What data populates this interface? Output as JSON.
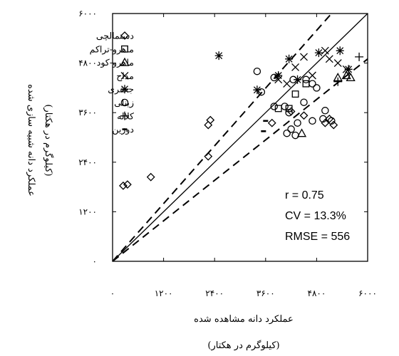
{
  "chart_data": {
    "type": "scatter",
    "xlabel": "عملکرد دانه مشاهده شده",
    "xlabel_unit": "(کیلوگرم در هکتار)",
    "ylabel": "عملکرد دانه شبیه سازی شده",
    "ylabel_unit": "(کیلوگرم در هکتار)",
    "xlim": [
      0,
      6000
    ],
    "ylim": [
      0,
      6000
    ],
    "x_ticks": [
      0,
      1200,
      2400,
      3600,
      4800,
      6000
    ],
    "y_ticks": [
      0,
      1200,
      2400,
      3600,
      4800,
      6000
    ],
    "x_tick_labels": [
      "۰",
      "۱۲۰۰",
      "۲۴۰۰",
      "۳۶۰۰",
      "۴۸۰۰",
      "۶۰۰۰"
    ],
    "y_tick_labels": [
      "۰",
      "۱۲۰۰",
      "۲۴۰۰",
      "۳۶۰۰",
      "۴۸۰۰",
      "۶۰۰۰"
    ],
    "grid": false,
    "legend_position": "top-left",
    "reference_lines": [
      {
        "kind": "1:1",
        "style": "solid",
        "from": [
          0,
          0
        ],
        "to": [
          6000,
          6000
        ]
      },
      {
        "kind": "upper-bound",
        "style": "dashed",
        "from": [
          0,
          0
        ],
        "to": [
          5150,
          6000
        ]
      },
      {
        "kind": "lower-bound",
        "style": "dashed",
        "from": [
          0,
          0
        ],
        "to": [
          6000,
          4900
        ]
      }
    ],
    "stats": [
      "r = 0.75",
      "CV = 13.3%",
      "RMSE = 556"
    ],
    "series": [
      {
        "name": "دستمالچی",
        "marker": "diamond",
        "points": [
          [
            250,
            1830
          ],
          [
            350,
            1860
          ],
          [
            900,
            2040
          ],
          [
            2250,
            2540
          ],
          [
            2250,
            3300
          ],
          [
            2300,
            3420
          ],
          [
            3750,
            3350
          ],
          [
            4200,
            3630
          ],
          [
            4500,
            3530
          ],
          [
            5000,
            3350
          ],
          [
            5100,
            3450
          ],
          [
            5200,
            3300
          ]
        ]
      },
      {
        "name": "ماهرو-تراکم",
        "marker": "square",
        "points": [
          [
            3900,
            3700
          ],
          [
            4150,
            3700
          ],
          [
            4300,
            4050
          ],
          [
            4550,
            4300
          ]
        ]
      },
      {
        "name": "ماهرو-کود",
        "marker": "triangle",
        "points": [
          [
            4450,
            3100
          ],
          [
            5300,
            4450
          ],
          [
            5500,
            4500
          ],
          [
            5600,
            4450
          ]
        ]
      },
      {
        "name": "مداح",
        "marker": "x",
        "points": [
          [
            3900,
            4400
          ],
          [
            4100,
            4300
          ],
          [
            4300,
            4700
          ],
          [
            4500,
            4950
          ],
          [
            5000,
            5100
          ],
          [
            5100,
            4900
          ],
          [
            5300,
            4800
          ],
          [
            5500,
            4650
          ],
          [
            4700,
            4500
          ]
        ]
      },
      {
        "name": "جعفری",
        "marker": "asterisk",
        "points": [
          [
            2500,
            4980
          ],
          [
            3400,
            4150
          ],
          [
            3900,
            4500
          ],
          [
            4150,
            4900
          ],
          [
            4350,
            4400
          ],
          [
            4850,
            5050
          ],
          [
            5350,
            5100
          ],
          [
            5550,
            4650
          ]
        ]
      },
      {
        "name": "زینلی",
        "marker": "circle",
        "points": [
          [
            3400,
            4600
          ],
          [
            3500,
            4100
          ],
          [
            3800,
            4450
          ],
          [
            3800,
            3750
          ],
          [
            4050,
            3750
          ],
          [
            4150,
            3600
          ],
          [
            4250,
            4400
          ],
          [
            4100,
            3100
          ],
          [
            4200,
            3200
          ],
          [
            4300,
            3050
          ],
          [
            4350,
            3350
          ],
          [
            4500,
            3850
          ],
          [
            4550,
            4400
          ],
          [
            4700,
            4300
          ],
          [
            4800,
            4200
          ],
          [
            4700,
            3400
          ],
          [
            4950,
            3450
          ],
          [
            5000,
            3650
          ],
          [
            5150,
            3400
          ]
        ]
      },
      {
        "name": "کلاله",
        "marker": "plus",
        "points": [
          [
            5300,
            4350
          ],
          [
            5800,
            4950
          ]
        ]
      },
      {
        "name": "دوزین",
        "marker": "dash",
        "points": [
          [
            3550,
            3150
          ],
          [
            3600,
            3400
          ]
        ]
      }
    ]
  }
}
